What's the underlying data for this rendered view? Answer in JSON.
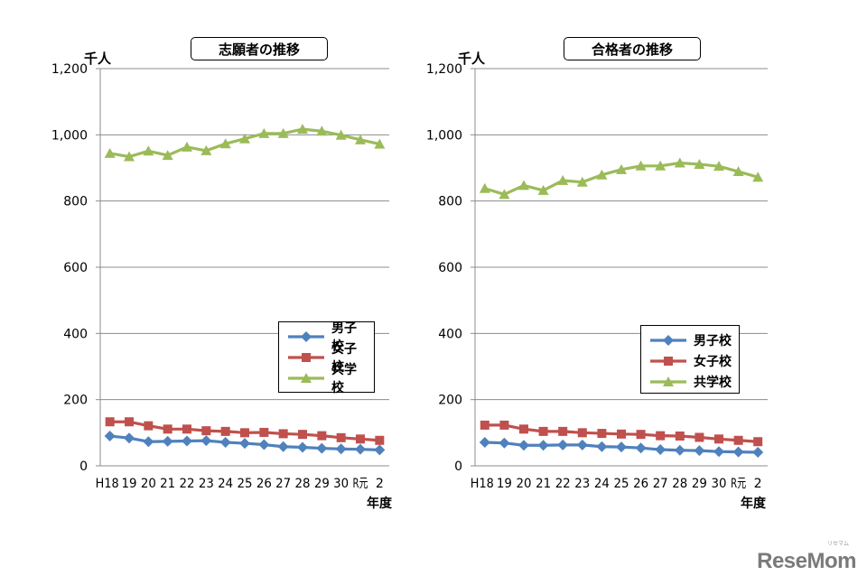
{
  "chart_data": [
    {
      "type": "line",
      "title": "志願者の推移",
      "ylabel": "千人",
      "xlabel": "年度",
      "ylim": [
        0,
        1200
      ],
      "yticks": [
        "0",
        "200",
        "400",
        "600",
        "800",
        "1,000",
        "1,200"
      ],
      "categories": [
        "H18",
        "19",
        "20",
        "21",
        "22",
        "23",
        "24",
        "25",
        "26",
        "27",
        "28",
        "29",
        "30",
        "R元",
        "2"
      ],
      "grid": true,
      "legend_position": "lower-right",
      "series": [
        {
          "name": "男子校",
          "color": "#4F81BD",
          "marker": "diamond",
          "values": [
            90,
            84,
            73,
            74,
            75,
            76,
            71,
            68,
            64,
            58,
            56,
            53,
            51,
            50,
            48
          ]
        },
        {
          "name": "女子校",
          "color": "#C0504D",
          "marker": "square",
          "values": [
            133,
            133,
            121,
            111,
            111,
            106,
            104,
            100,
            101,
            97,
            95,
            91,
            85,
            81,
            77
          ]
        },
        {
          "name": "共学校",
          "color": "#9BBB59",
          "marker": "triangle",
          "values": [
            944,
            934,
            951,
            938,
            963,
            952,
            973,
            988,
            1004,
            1004,
            1017,
            1011,
            999,
            985,
            972
          ]
        }
      ]
    },
    {
      "type": "line",
      "title": "合格者の推移",
      "ylabel": "千人",
      "xlabel": "年度",
      "ylim": [
        0,
        1200
      ],
      "yticks": [
        "0",
        "200",
        "400",
        "600",
        "800",
        "1,000",
        "1,200"
      ],
      "categories": [
        "H18",
        "19",
        "20",
        "21",
        "22",
        "23",
        "24",
        "25",
        "26",
        "27",
        "28",
        "29",
        "30",
        "R元",
        "2"
      ],
      "grid": true,
      "legend_position": "lower-right",
      "series": [
        {
          "name": "男子校",
          "color": "#4F81BD",
          "marker": "diamond",
          "values": [
            71,
            69,
            62,
            62,
            63,
            63,
            58,
            57,
            54,
            49,
            47,
            46,
            43,
            42,
            41
          ]
        },
        {
          "name": "女子校",
          "color": "#C0504D",
          "marker": "square",
          "values": [
            123,
            123,
            111,
            104,
            104,
            100,
            98,
            96,
            95,
            91,
            90,
            86,
            81,
            77,
            73
          ]
        },
        {
          "name": "共学校",
          "color": "#9BBB59",
          "marker": "triangle",
          "values": [
            838,
            820,
            847,
            832,
            862,
            857,
            879,
            895,
            906,
            906,
            915,
            911,
            905,
            889,
            872
          ]
        }
      ]
    }
  ],
  "watermark": {
    "text": "ReseMom",
    "subtext": "リセマム"
  }
}
